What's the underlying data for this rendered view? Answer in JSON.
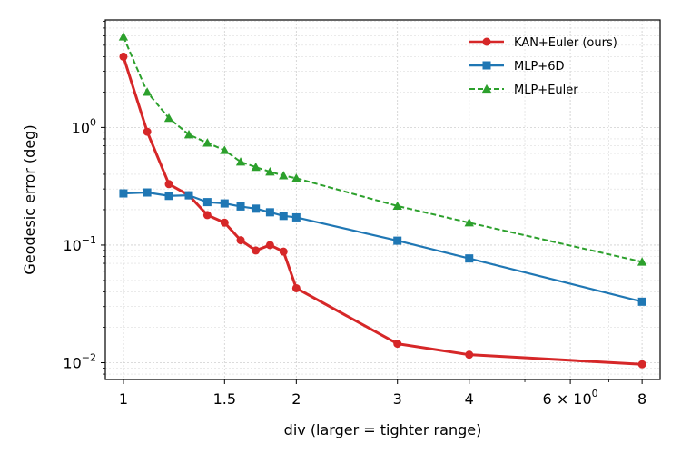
{
  "chart_data": {
    "type": "line",
    "title": "",
    "xlabel": "div  (larger = tighter range)",
    "ylabel": "Geodesic error (deg)",
    "xscale": "log",
    "yscale": "log",
    "xlim": [
      0.93,
      8.6
    ],
    "ylim": [
      0.0072,
      8.2
    ],
    "grid": "on",
    "legend_position": "top-right",
    "x_ticks": [
      {
        "value": 1,
        "label": "1"
      },
      {
        "value": 1.5,
        "label": "1.5"
      },
      {
        "value": 2,
        "label": "2"
      },
      {
        "value": 3,
        "label": "3"
      },
      {
        "value": 4,
        "label": "4"
      },
      {
        "value": 6,
        "label": "6 × 10",
        "exp": "0"
      },
      {
        "value": 8,
        "label": "8"
      }
    ],
    "y_ticks": [
      {
        "value": 0.01,
        "base": "10",
        "exp": "−2"
      },
      {
        "value": 0.1,
        "base": "10",
        "exp": "−1"
      },
      {
        "value": 1,
        "base": "10",
        "exp": "0"
      }
    ],
    "series": [
      {
        "name": "KAN+Euler (ours)",
        "color": "#d62728",
        "marker": "circle",
        "dash": "solid",
        "x": [
          1,
          1.1,
          1.2,
          1.3,
          1.4,
          1.5,
          1.6,
          1.7,
          1.8,
          1.9,
          2,
          3,
          4,
          8
        ],
        "y": [
          4.0,
          0.92,
          0.33,
          0.265,
          0.18,
          0.155,
          0.11,
          0.09,
          0.1,
          0.088,
          0.043,
          0.0145,
          0.0117,
          0.0097
        ]
      },
      {
        "name": "MLP+6D",
        "color": "#1f77b4",
        "marker": "square",
        "dash": "solid",
        "x": [
          1,
          1.1,
          1.2,
          1.3,
          1.4,
          1.5,
          1.6,
          1.7,
          1.8,
          1.9,
          2,
          3,
          4,
          8
        ],
        "y": [
          0.275,
          0.28,
          0.262,
          0.265,
          0.232,
          0.226,
          0.213,
          0.204,
          0.19,
          0.177,
          0.172,
          0.109,
          0.077,
          0.033
        ]
      },
      {
        "name": "MLP+Euler",
        "color": "#2ca02c",
        "marker": "triangle",
        "dash": "dashed",
        "x": [
          1,
          1.1,
          1.2,
          1.3,
          1.4,
          1.5,
          1.6,
          1.7,
          1.8,
          1.9,
          2,
          3,
          4,
          8
        ],
        "y": [
          5.9,
          2.0,
          1.2,
          0.87,
          0.74,
          0.64,
          0.51,
          0.46,
          0.42,
          0.39,
          0.37,
          0.215,
          0.155,
          0.072
        ]
      }
    ]
  }
}
